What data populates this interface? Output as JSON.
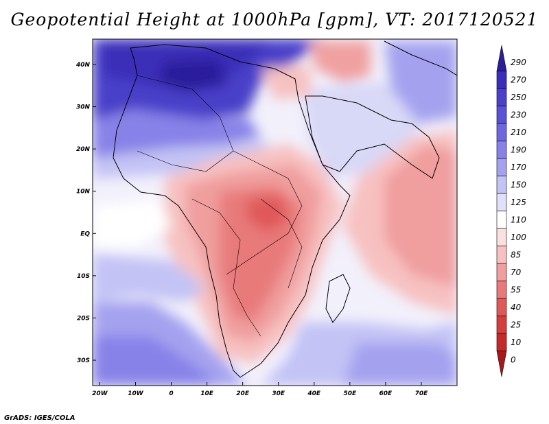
{
  "title": "Geopotential Height at 1000hPa [gpm], VT: 2017120521",
  "footer": "GrADS: IGES/COLA",
  "map": {
    "lon_range": [
      -22,
      80
    ],
    "lat_range": [
      -36,
      46
    ],
    "lon_ticks": [
      "20W",
      "10W",
      "0",
      "10E",
      "20E",
      "30E",
      "40E",
      "50E",
      "60E",
      "70E"
    ],
    "lat_ticks": [
      "40N",
      "30N",
      "20N",
      "10N",
      "EQ",
      "10S",
      "20S",
      "30S"
    ]
  },
  "colorbar": {
    "labels": [
      "290",
      "270",
      "250",
      "230",
      "210",
      "190",
      "170",
      "150",
      "125",
      "110",
      "100",
      "85",
      "70",
      "55",
      "40",
      "25",
      "10",
      "0"
    ],
    "colors": [
      "#2a1f9b",
      "#3a2fb8",
      "#4a40c9",
      "#5a52d6",
      "#6e68e0",
      "#8782e8",
      "#a4a2ef",
      "#c3c3f5",
      "#e0e0fa",
      "#ffffff",
      "#fbe0e0",
      "#f7c1c1",
      "#f09e9e",
      "#e87a7a",
      "#e05959",
      "#d63e3e",
      "#c42a2a",
      "#a81818"
    ]
  }
}
